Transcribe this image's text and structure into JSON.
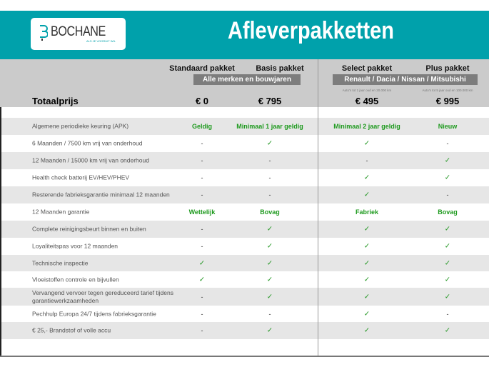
{
  "header": {
    "brand": "BOCHANE",
    "tagline": "ALS JE VOORUIT WIL",
    "title": "Afleverpakketten"
  },
  "colors": {
    "teal": "#00a1ab",
    "header_gray": "#cbcbcb",
    "row_gray": "#e6e6e6",
    "green": "#1e9a1e"
  },
  "packages": [
    {
      "name": "Standaard pakket",
      "price": "€ 0"
    },
    {
      "name": "Basis pakket",
      "price": "€ 795"
    },
    {
      "name": "Select pakket",
      "price": "€ 495",
      "note": "Auto's tot 1 jaar oud en 20.000 km"
    },
    {
      "name": "Plus pakket",
      "price": "€ 995",
      "note": "Auto's tot 5 jaar oud en 100.000 km"
    }
  ],
  "groups": {
    "all": "Alle merken en bouwjaren",
    "brands": "Renault / Dacia / Nissan / Mitsubishi"
  },
  "total_label": "Totaalprijs",
  "rows": [
    {
      "label": "Algemene periodieke keuring (APK)",
      "values": [
        "Geldig",
        "Minimaal 1 jaar geldig",
        "Minimaal 2 jaar geldig",
        "Nieuw"
      ]
    },
    {
      "label": "6 Maanden / 7500 km vrij van onderhoud",
      "values": [
        "-",
        "✓",
        "✓",
        "-"
      ]
    },
    {
      "label": "12 Maanden / 15000 km vrij van onderhoud",
      "values": [
        "-",
        "-",
        "-",
        "✓"
      ]
    },
    {
      "label": "Health check batterij EV/HEV/PHEV",
      "values": [
        "-",
        "-",
        "✓",
        "✓"
      ]
    },
    {
      "label": "Resterende fabrieksgarantie minimaal 12 maanden",
      "values": [
        "-",
        "-",
        "✓",
        "-"
      ]
    },
    {
      "label": "12 Maanden  garantie",
      "values": [
        "Wettelijk",
        "Bovag",
        "Fabriek",
        "Bovag"
      ]
    },
    {
      "label": "Complete reinigingsbeurt binnen en buiten",
      "values": [
        "-",
        "✓",
        "✓",
        "✓"
      ]
    },
    {
      "label": "Loyaliteitspas voor 12 maanden",
      "values": [
        "-",
        "✓",
        "✓",
        "✓"
      ]
    },
    {
      "label": "Technische inspectie",
      "values": [
        "✓",
        "✓",
        "✓",
        "✓"
      ]
    },
    {
      "label": "Vloeistoffen controle en bijvullen",
      "values": [
        "✓",
        "✓",
        "✓",
        "✓"
      ]
    },
    {
      "label": "Vervangend vervoer tegen gereduceerd tarief tijdens garantiewerkzaamheden",
      "values": [
        "-",
        "✓",
        "✓",
        "✓"
      ]
    },
    {
      "label": "Pechhulp Europa 24/7 tijdens fabrieksgarantie",
      "values": [
        "-",
        "-",
        "✓",
        "-"
      ]
    },
    {
      "label": "€ 25,- Brandstof of  volle accu",
      "values": [
        "-",
        "✓",
        "✓",
        "✓"
      ]
    }
  ]
}
